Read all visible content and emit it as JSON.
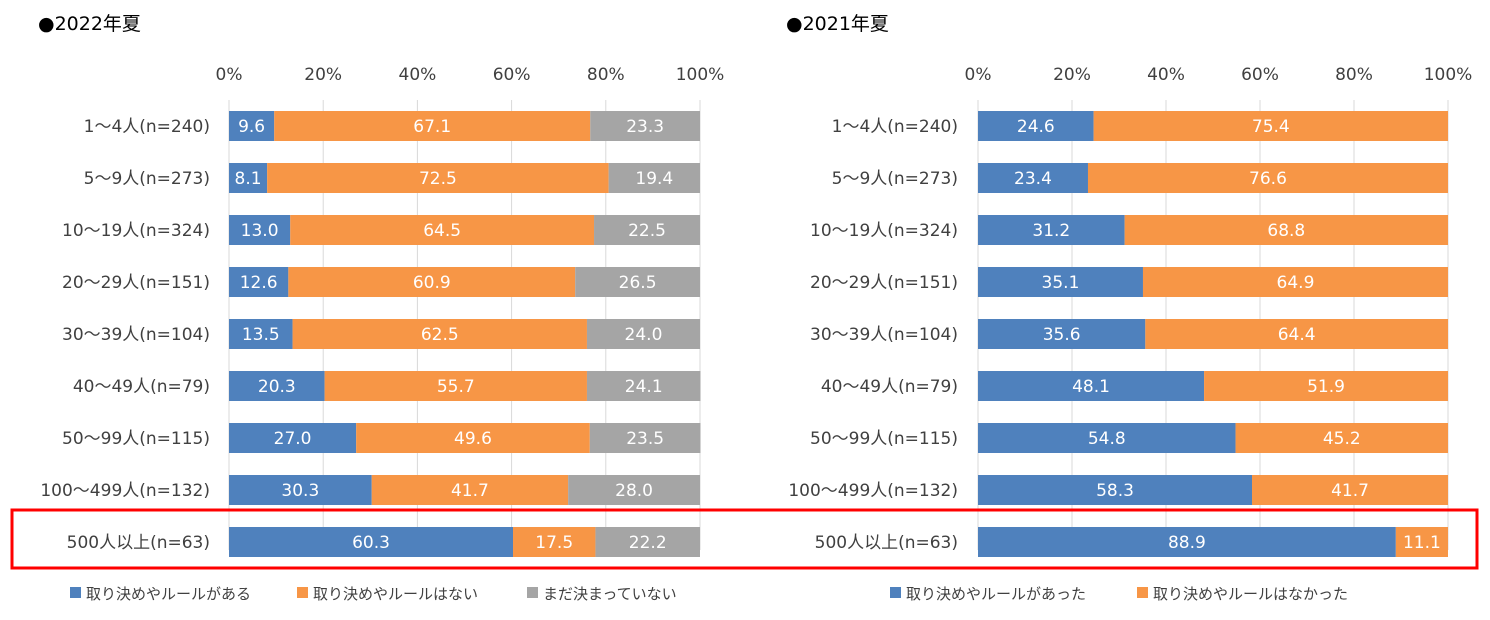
{
  "chart_data": [
    {
      "type": "bar",
      "orientation": "horizontal",
      "stacked": true,
      "title": "●2022年夏",
      "x_ticks": [
        "0%",
        "20%",
        "40%",
        "60%",
        "80%",
        "100%"
      ],
      "xlim": [
        0,
        100
      ],
      "categories": [
        "1～4人(n=240)",
        "5～9人(n=273)",
        "10～19人(n=324)",
        "20～29人(n=151)",
        "30～39人(n=104)",
        "40～49人(n=79)",
        "50～99人(n=115)",
        "100～499人(n=132)",
        "500人以上(n=63)"
      ],
      "series": [
        {
          "name": "取り決めやルールがある",
          "color": "#4F81BD",
          "values": [
            9.6,
            8.1,
            13.0,
            12.6,
            13.5,
            20.3,
            27.0,
            30.3,
            60.3
          ],
          "labels": [
            "9.6",
            "8.1",
            "13.0",
            "12.6",
            "13.5",
            "20.3",
            "27.0",
            "30.3",
            "60.3"
          ]
        },
        {
          "name": "取り決めやルールはない",
          "color": "#F79646",
          "values": [
            67.1,
            72.5,
            64.5,
            60.9,
            62.5,
            55.7,
            49.6,
            41.7,
            17.5
          ],
          "labels": [
            "67.1",
            "72.5",
            "64.5",
            "60.9",
            "62.5",
            "55.7",
            "49.6",
            "41.7",
            "17.5"
          ]
        },
        {
          "name": "まだ決まっていない",
          "color": "#A5A5A5",
          "values": [
            23.3,
            19.4,
            22.5,
            26.5,
            24.0,
            24.1,
            23.5,
            28.0,
            22.2
          ],
          "labels": [
            "23.3",
            "19.4",
            "22.5",
            "26.5",
            "24.0",
            "24.1",
            "23.5",
            "28.0",
            "22.2"
          ]
        }
      ],
      "highlight": "500人以上(n=63)"
    },
    {
      "type": "bar",
      "orientation": "horizontal",
      "stacked": true,
      "title": "●2021年夏",
      "x_ticks": [
        "0%",
        "20%",
        "40%",
        "60%",
        "80%",
        "100%"
      ],
      "xlim": [
        0,
        100
      ],
      "categories": [
        "1～4人(n=240)",
        "5～9人(n=273)",
        "10～19人(n=324)",
        "20～29人(n=151)",
        "30～39人(n=104)",
        "40～49人(n=79)",
        "50～99人(n=115)",
        "100～499人(n=132)",
        "500人以上(n=63)"
      ],
      "series": [
        {
          "name": "取り決めやルールがあった",
          "color": "#4F81BD",
          "values": [
            24.6,
            23.4,
            31.2,
            35.1,
            35.6,
            48.1,
            54.8,
            58.3,
            88.9
          ],
          "labels": [
            "24.6",
            "23.4",
            "31.2",
            "35.1",
            "35.6",
            "48.1",
            "54.8",
            "58.3",
            "88.9"
          ]
        },
        {
          "name": "取り決めやルールはなかった",
          "color": "#F79646",
          "values": [
            75.4,
            76.6,
            68.8,
            64.9,
            64.4,
            51.9,
            45.2,
            41.7,
            11.1
          ],
          "labels": [
            "75.4",
            "76.6",
            "68.8",
            "64.9",
            "64.4",
            "51.9",
            "45.2",
            "41.7",
            "11.1"
          ]
        }
      ],
      "highlight": "500人以上(n=63)"
    }
  ],
  "colors": {
    "highlight_box": "#FF0000",
    "gridline": "#D9D9D9"
  }
}
